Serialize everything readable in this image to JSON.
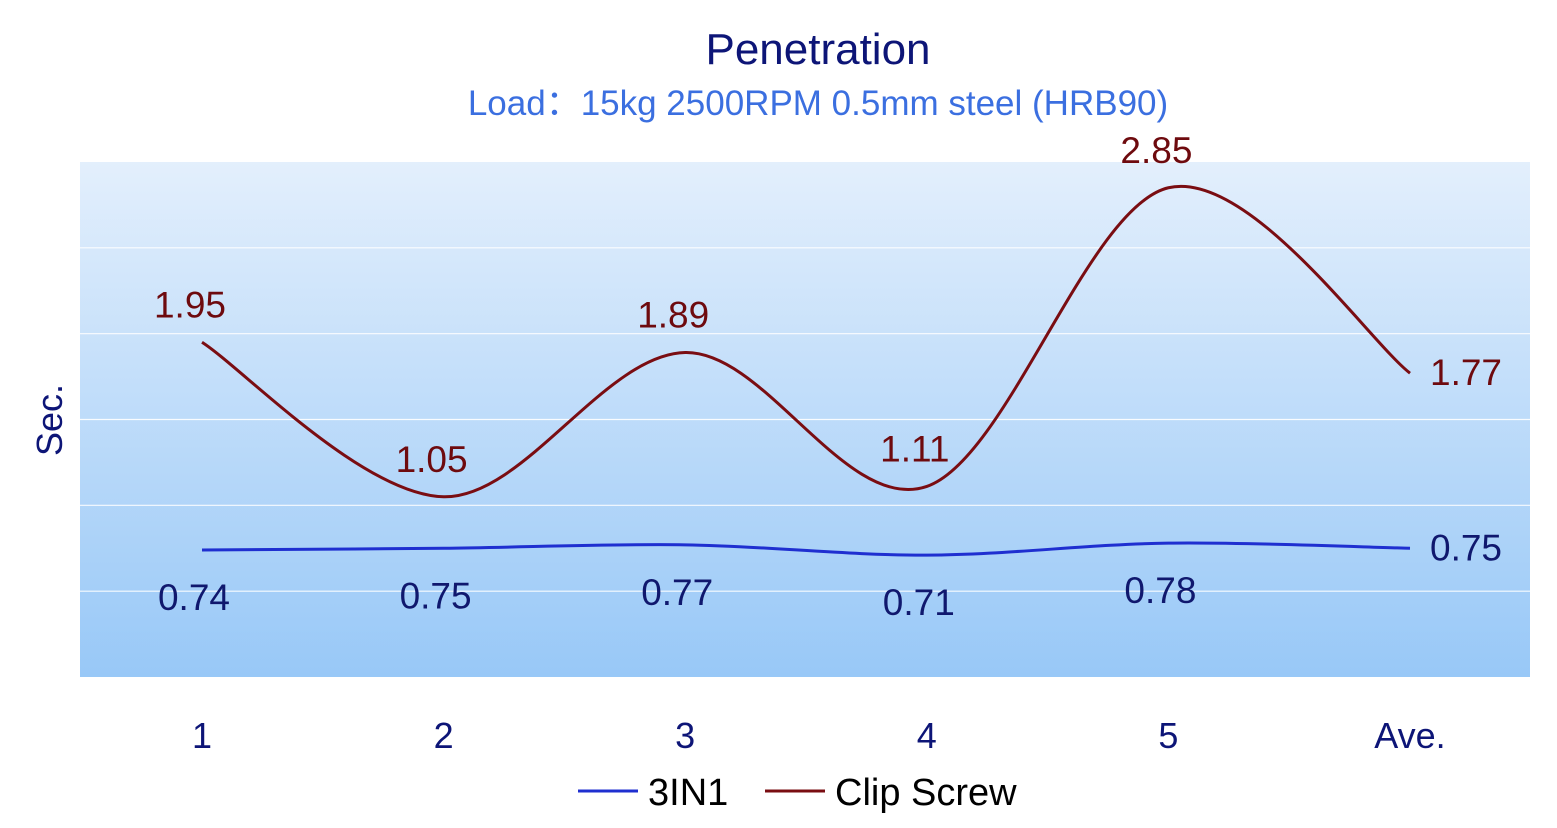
{
  "chart_data": {
    "type": "line",
    "title": "Penetration",
    "subtitle": "Load：15kg  2500RPM  0.5mm steel  (HRB90)",
    "xlabel": "",
    "ylabel": "Sec.",
    "categories": [
      "1",
      "2",
      "3",
      "4",
      "5",
      "Ave."
    ],
    "ylim": [
      0,
      3
    ],
    "grid": true,
    "legend_position": "bottom",
    "smooth": true,
    "series": [
      {
        "name": "3IN1",
        "values": [
          0.74,
          0.75,
          0.77,
          0.71,
          0.78,
          0.75
        ],
        "labels": [
          "0.74",
          "0.75",
          "0.77",
          "0.71",
          "0.78",
          "0.75"
        ],
        "color": "#1f2fd0",
        "label_color": "#10186e"
      },
      {
        "name": "Clip Screw",
        "values": [
          1.95,
          1.05,
          1.89,
          1.11,
          2.85,
          1.77
        ],
        "labels": [
          "1.95",
          "1.05",
          "1.89",
          "1.11",
          "2.85",
          "1.77"
        ],
        "color": "#7a0d12",
        "label_color": "#6e0a0e"
      }
    ]
  },
  "colors": {
    "title": "#0d1577",
    "subtitle": "#3b6fe0",
    "axis_text": "#0d1577",
    "plot_top": "#e3effc",
    "plot_bottom": "#98c8f7",
    "grid": "#ffffff"
  }
}
